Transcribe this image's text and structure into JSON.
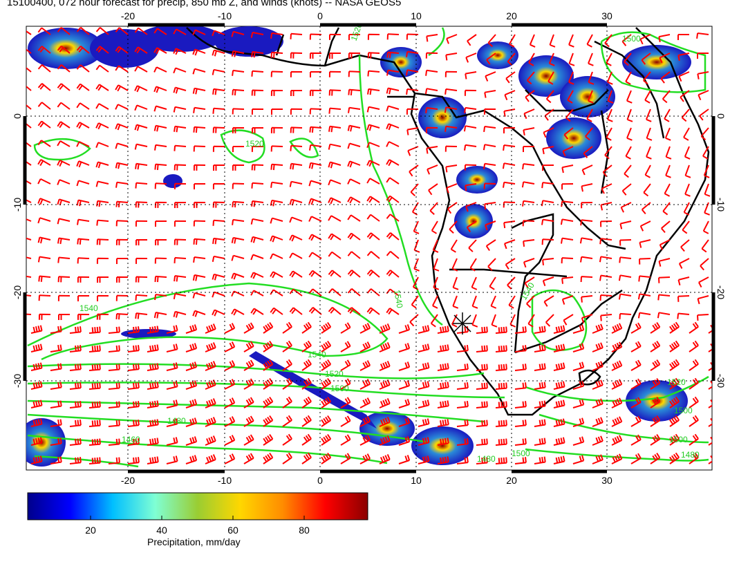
{
  "title": "15100400, 072 hour forecast for precip, 850 mb Z, and winds (knots) -- NASA GEOS5",
  "map": {
    "lon_range": [
      -30,
      40
    ],
    "lat_range": [
      -40,
      10
    ],
    "lon_ticks": [
      "-20",
      "-10",
      "0",
      "10",
      "20",
      "30"
    ],
    "lat_ticks": [
      "0",
      "-10",
      "-20",
      "-30"
    ],
    "contour_labels": [
      "1520",
      "1540",
      "1540",
      "1520",
      "1500",
      "1480",
      "1460",
      "1540",
      "1500",
      "1480",
      "1520",
      "1500",
      "1520",
      "1500",
      "1540",
      "1500",
      "1480"
    ],
    "colors": {
      "contour": "#22dd22",
      "wind_barb": "#ff0000",
      "coastline": "#000000",
      "grid": "#000000"
    },
    "grid": "dotted",
    "marker": "asterisk"
  },
  "colorbar": {
    "ticks": [
      "20",
      "40",
      "60",
      "80"
    ],
    "label": "Precipitation, mm/day",
    "stops": [
      "#00008b",
      "#0000ff",
      "#00bfff",
      "#7fffd4",
      "#9acd32",
      "#ffd700",
      "#ff8c00",
      "#ff0000",
      "#8b0000"
    ]
  }
}
